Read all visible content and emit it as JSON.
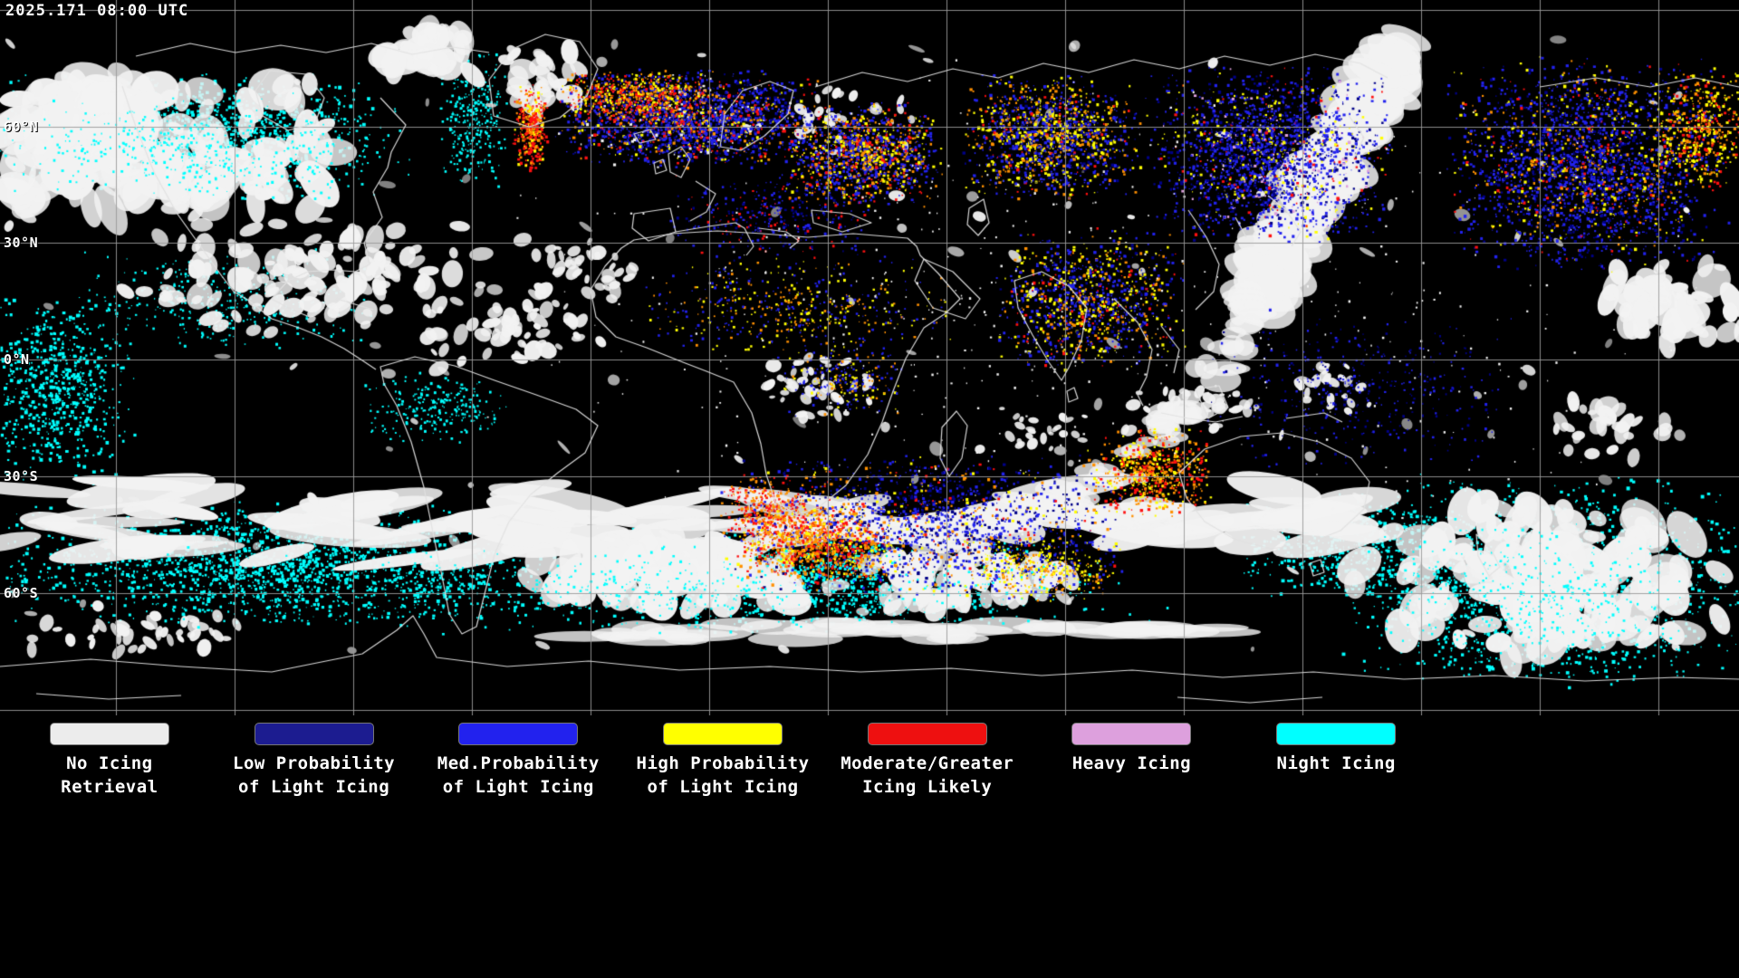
{
  "header": {
    "timestamp": "2025.171 08:00 UTC"
  },
  "map": {
    "latitude_labels": [
      "60°N",
      "30°N",
      "0°N",
      "30°S",
      "60°S"
    ],
    "colors": {
      "background": "#000000",
      "grid": "#9a9a9a",
      "coastline": "#e1e1e1",
      "cloud_white": "#f2f2f2",
      "night_icing_cyan": "#00ffff",
      "low_prob_navy": "#000088",
      "med_prob_blue": "#2222ee",
      "high_prob_yellow": "#ffff00",
      "moderate_orange": "#ff9000",
      "moderate_red": "#ff1010",
      "heavy_plum": "#dda0dd"
    }
  },
  "legend": {
    "items": [
      {
        "name": "no-icing-retrieval",
        "color": "#ececec",
        "lines": [
          "No Icing",
          "Retrieval"
        ]
      },
      {
        "name": "low-probability-light-icing",
        "color": "#1c1c90",
        "lines": [
          "Low Probability",
          "of Light Icing"
        ]
      },
      {
        "name": "med-probability-light-icing",
        "color": "#2222ee",
        "lines": [
          "Med.Probability",
          "of Light Icing"
        ]
      },
      {
        "name": "high-probability-light-icing",
        "color": "#ffff00",
        "lines": [
          "High Probability",
          "of Light Icing"
        ]
      },
      {
        "name": "moderate-greater-icing",
        "color": "#ee1010",
        "lines": [
          "Moderate/Greater",
          "Icing Likely"
        ]
      },
      {
        "name": "heavy-icing",
        "color": "#dda0dd",
        "lines": [
          "Heavy Icing"
        ]
      },
      {
        "name": "night-icing",
        "color": "#00ffff",
        "lines": [
          "Night Icing"
        ]
      }
    ]
  }
}
